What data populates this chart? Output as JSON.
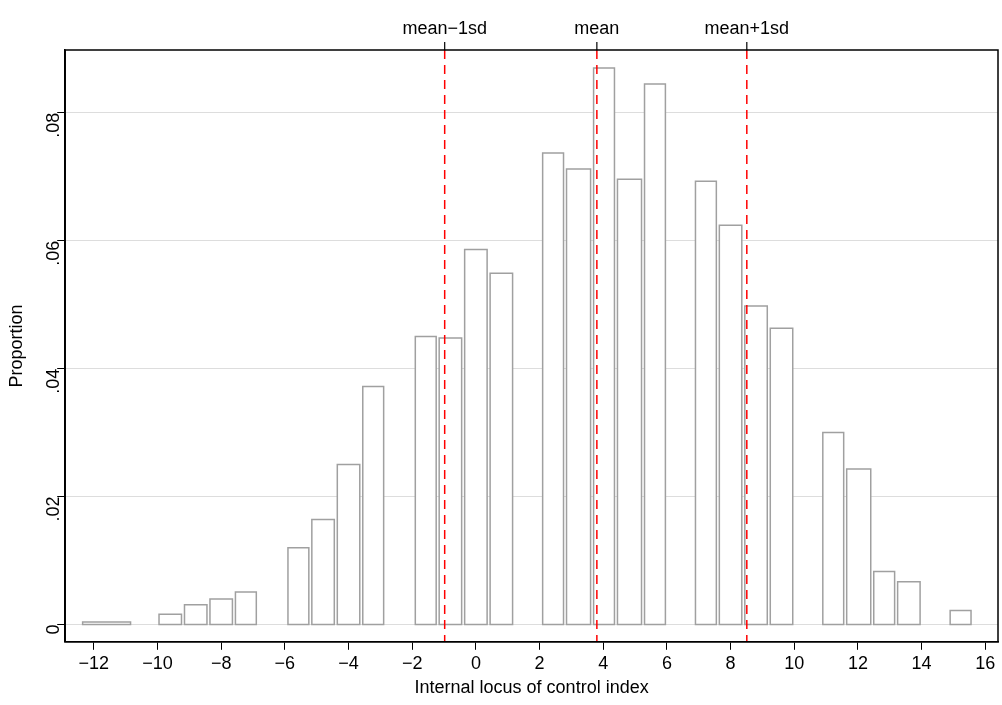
{
  "chart_data": {
    "type": "histogram",
    "xlabel": "Internal locus of control index",
    "ylabel": "Proportion",
    "bins": [
      -12.4,
      -10.8,
      -10.0,
      -9.2,
      -8.4,
      -7.6,
      -6.85,
      -5.95,
      -5.2,
      -4.4,
      -3.6,
      -2.85,
      -1.95,
      -1.2,
      -0.4,
      0.4,
      1.2,
      2.05,
      2.8,
      3.65,
      4.4,
      5.25,
      6.0,
      6.85,
      7.6,
      8.4,
      9.2,
      10.0,
      10.85,
      11.6,
      12.45,
      13.2,
      14.0,
      14.85,
      15.6
    ],
    "values": [
      0.0004,
      0,
      0.0016,
      0.0031,
      0.004,
      0.0051,
      0,
      0.012,
      0.0164,
      0.025,
      0.0372,
      0,
      0.045,
      0.0448,
      0.0586,
      0.0549,
      0,
      0.0737,
      0.0712,
      0.087,
      0.0696,
      0.0845,
      0,
      0.0693,
      0.0624,
      0.0498,
      0.0463,
      0,
      0.03,
      0.0243,
      0.0083,
      0.0067,
      0,
      0.0022
    ],
    "color": "#a0a0a0",
    "xlim": [
      -12.9,
      16.4
    ],
    "xticks": [
      {
        "value": -12,
        "label": "−12"
      },
      {
        "value": -10,
        "label": "−10"
      },
      {
        "value": -8,
        "label": "−8"
      },
      {
        "value": -6,
        "label": "−6"
      },
      {
        "value": -4,
        "label": "−4"
      },
      {
        "value": -2,
        "label": "−2"
      },
      0,
      2,
      4,
      6,
      8,
      10,
      12,
      14,
      16
    ],
    "ylim": [
      -0.0027,
      0.0898
    ],
    "yticks": [
      0,
      {
        "value": 0.02,
        "label": ".02"
      },
      {
        "value": 0.04,
        "label": ".04"
      },
      {
        "value": 0.06,
        "label": ".06"
      },
      {
        "value": 0.08,
        "label": ".08"
      }
    ],
    "grid": "y",
    "legend": false,
    "ref_lines": [
      {
        "axis": "x",
        "value": -0.98,
        "label": "mean−1sd",
        "color": "#ff0000",
        "line_style": "dashed"
      },
      {
        "axis": "x",
        "value": 3.8,
        "label": "mean",
        "color": "#ff0000",
        "line_style": "dashed"
      },
      {
        "axis": "x",
        "value": 8.51,
        "label": "mean+1sd",
        "color": "#ff0000",
        "line_style": "dashed"
      }
    ]
  }
}
